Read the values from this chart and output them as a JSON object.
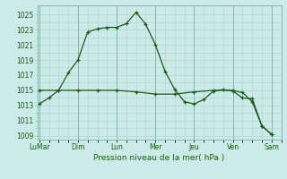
{
  "title": "Pression niveau de la mer( hPa )",
  "bg_color": "#cceae8",
  "grid_color": "#aad4cc",
  "line_color": "#1a5c1a",
  "ylim": [
    1008.5,
    1026.2
  ],
  "yticks": [
    1009,
    1011,
    1013,
    1015,
    1017,
    1019,
    1021,
    1023,
    1025
  ],
  "x_labels": [
    "LuMar",
    "Dim",
    "Lun",
    "Mer",
    "Jeu",
    "Ven",
    "Sam"
  ],
  "x_positions": [
    0,
    2,
    4,
    6,
    8,
    10,
    12
  ],
  "xlim": [
    -0.1,
    12.5
  ],
  "series1_x": [
    0.0,
    0.5,
    1.0,
    1.5,
    2.0,
    2.5,
    3.0,
    3.5,
    4.0,
    4.5,
    5.0,
    5.5,
    6.0,
    6.5,
    7.0,
    7.5,
    8.0,
    8.5,
    9.0,
    9.5,
    10.0,
    10.5,
    11.0,
    11.5,
    12.0
  ],
  "series1_y": [
    1013.2,
    1014.0,
    1015.0,
    1017.3,
    1019.0,
    1022.7,
    1023.1,
    1023.3,
    1023.3,
    1023.8,
    1025.3,
    1023.7,
    1021.0,
    1017.5,
    1015.1,
    1013.5,
    1013.2,
    1013.8,
    1014.9,
    1015.1,
    1014.9,
    1014.0,
    1013.9,
    1010.3,
    1009.2
  ],
  "series2_x": [
    0.0,
    1.0,
    2.0,
    3.0,
    4.0,
    5.0,
    6.0,
    7.0,
    8.0,
    9.0,
    10.0,
    10.5,
    11.0,
    11.5,
    12.0
  ],
  "series2_y": [
    1015.0,
    1015.0,
    1015.0,
    1015.0,
    1015.0,
    1014.8,
    1014.5,
    1014.5,
    1014.8,
    1015.0,
    1015.0,
    1014.7,
    1013.5,
    1010.3,
    1009.2
  ],
  "ylabel_fontsize": 5.5,
  "xlabel_fontsize": 6.5,
  "tick_fontsize": 5.5
}
